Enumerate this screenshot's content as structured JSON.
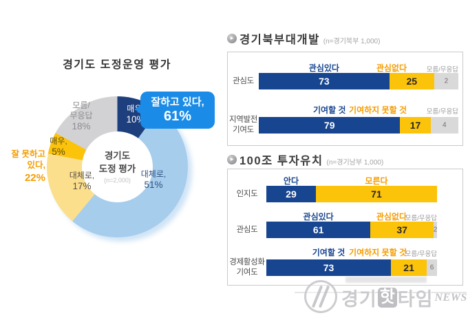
{
  "page": {
    "title": "경기도 도정운영 평가"
  },
  "icons": {
    "section_bullet": "▶"
  },
  "colors": {
    "bar_positive": "#17458f",
    "bar_negative": "#fcc30b",
    "bar_dont_know": "#d9d9da",
    "label_positive": "#17458f",
    "label_negative": "#f59c00",
    "label_dont_know": "#9a9a9e",
    "callout_blue": "#1a8ce8",
    "negative_orange": "#f59c00"
  },
  "donut": {
    "center": {
      "line1": "경기도",
      "line2": "도정 평가",
      "note": "(n=2,000)"
    },
    "segments": [
      {
        "id": "very-positive",
        "label": "매우,",
        "pct_label": "10%",
        "value": 10,
        "color": "#1e3f7d",
        "label_color": "#ffffff"
      },
      {
        "id": "mostly-positive",
        "label": "대체로,",
        "pct_label": "51%",
        "value": 51,
        "color": "#a6cdec",
        "label_color": "#2f4f80"
      },
      {
        "id": "mostly-negative",
        "label": "대체로,",
        "pct_label": "17%",
        "value": 17,
        "color": "#fbdf8d",
        "label_color": "#55504a"
      },
      {
        "id": "very-negative",
        "label": "매우,",
        "pct_label": "5%",
        "value": 5,
        "color": "#fcc30b",
        "label_color": "#5c4d15"
      },
      {
        "id": "dont-know",
        "label_lines": [
          "모름/",
          "무응답"
        ],
        "pct_label": "18%",
        "value": 18,
        "color": "#d2d2d4",
        "label_color": "#8c8c90"
      }
    ],
    "callout": {
      "line1": "잘하고 있다,",
      "line2": "61%",
      "bg": "#1a8ce8"
    },
    "negative_summary": {
      "line1": "잘 못하고",
      "line2": "있다,",
      "line3": "22%",
      "color": "#f59c00"
    }
  },
  "sections": [
    {
      "title": "경기북부대개발",
      "sample": "(n=경기북부 1,000)",
      "rows": [
        {
          "category_lines": [
            "관심도"
          ],
          "pos_label": "관심있다",
          "neg_label": "관심없다",
          "dk_label": "모름/무응답",
          "pos": 73,
          "neg": 25,
          "dk": 2
        },
        {
          "category_lines": [
            "지역발전",
            "기여도"
          ],
          "pos_label": "기여할 것",
          "neg_label": "기여하지 못할 것",
          "dk_label": "모름/무응답",
          "pos": 79,
          "neg": 17,
          "dk": 4
        }
      ]
    },
    {
      "title": "100조 투자유치",
      "sample": "(n=경기남부 1,000)",
      "rows": [
        {
          "category_lines": [
            "인지도"
          ],
          "pos_label": "안다",
          "neg_label": "모른다",
          "dk_label": null,
          "pos": 29,
          "neg": 71,
          "dk": 0
        },
        {
          "category_lines": [
            "관심도"
          ],
          "pos_label": "관심있다",
          "neg_label": "관심없다",
          "dk_label": "모름/무응답",
          "pos": 61,
          "neg": 37,
          "dk": 2
        },
        {
          "category_lines": [
            "경제활성화",
            "기여도"
          ],
          "pos_label": "기여할 것",
          "neg_label": "기여하지 못할 것",
          "dk_label": "모름/무응답",
          "pos": 73,
          "neg": 21,
          "dk": 6
        }
      ]
    }
  ],
  "watermark": {
    "text_prefix": "경기",
    "text_boxed": "핫",
    "text_suffix": "타임",
    "news": "NEWS"
  },
  "chart_data": [
    {
      "type": "pie",
      "subtype": "donut",
      "title": "경기도 도정운영 평가",
      "center_label": "경기도 도정 평가 (n=2,000)",
      "labels": [
        "매우 잘하고 있다",
        "대체로 잘하고 있다",
        "대체로 잘 못하고 있다",
        "매우 잘 못하고 있다",
        "모름/무응답"
      ],
      "values": [
        10,
        51,
        17,
        5,
        18
      ],
      "colors": [
        "#1e3f7d",
        "#a6cdec",
        "#fbdf8d",
        "#fcc30b",
        "#d2d2d4"
      ],
      "annotations": [
        "잘하고 있다, 61%",
        "잘 못하고 있다, 22%"
      ],
      "start_angle_deg": 0,
      "direction": "clockwise"
    },
    {
      "type": "bar",
      "title": "경기북부대개발",
      "sample": "n=경기북부 1,000",
      "orientation": "horizontal",
      "stacked": true,
      "categories": [
        "관심도",
        "지역발전 기여도"
      ],
      "series": [
        {
          "name": "긍정 (관심있다 / 기여할 것)",
          "values": [
            73,
            79
          ],
          "color": "#17458f"
        },
        {
          "name": "부정 (관심없다 / 기여하지 못할 것)",
          "values": [
            25,
            17
          ],
          "color": "#fcc30b"
        },
        {
          "name": "모름/무응답",
          "values": [
            2,
            4
          ],
          "color": "#d9d9da"
        }
      ],
      "xlim": [
        0,
        100
      ]
    },
    {
      "type": "bar",
      "title": "100조 투자유치",
      "sample": "n=경기남부 1,000",
      "orientation": "horizontal",
      "stacked": true,
      "categories": [
        "인지도",
        "관심도",
        "경제활성화 기여도"
      ],
      "series": [
        {
          "name": "긍정 (안다 / 관심있다 / 기여할 것)",
          "values": [
            29,
            61,
            73
          ],
          "color": "#17458f"
        },
        {
          "name": "부정 (모른다 / 관심없다 / 기여하지 못할 것)",
          "values": [
            71,
            37,
            21
          ],
          "color": "#fcc30b"
        },
        {
          "name": "모름/무응답",
          "values": [
            0,
            2,
            6
          ],
          "color": "#d9d9da"
        }
      ],
      "xlim": [
        0,
        100
      ]
    }
  ]
}
